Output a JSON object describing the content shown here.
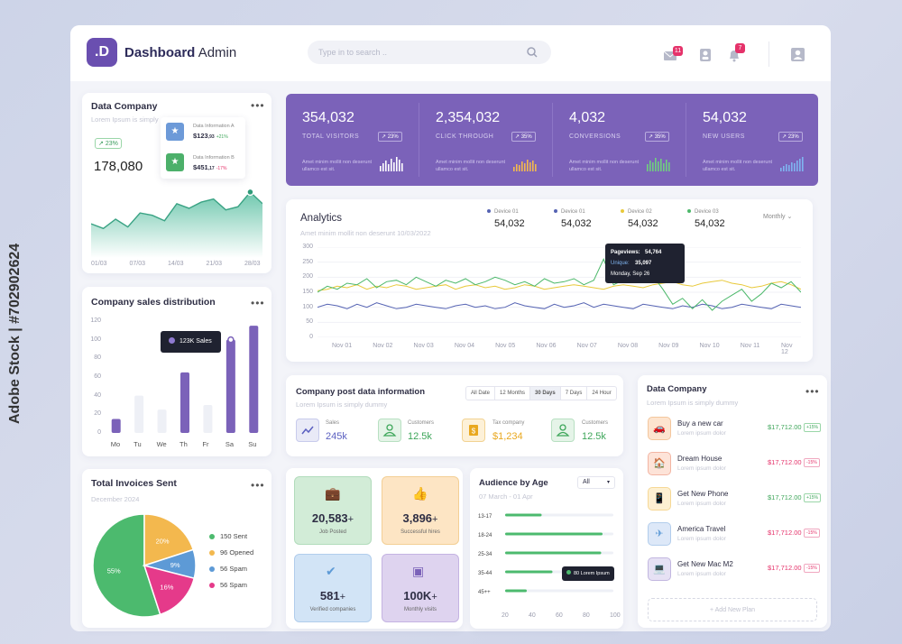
{
  "header": {
    "logo": ".D",
    "brand_bold": "Dashboard",
    "brand_rest": " Admin",
    "search_placeholder": "Type in to search ..",
    "mail_badge": "11",
    "bell_badge": "7"
  },
  "data_company_card": {
    "title": "Data Company",
    "subtitle": "Lorem Ipsum is simply",
    "change": "23%",
    "value": "178,080",
    "info": [
      {
        "label": "Data Information A",
        "value": "$123",
        "cents": ",93",
        "change": "+21%"
      },
      {
        "label": "Data Information B",
        "value": "$451",
        "cents": ",17",
        "change": "-17%"
      }
    ],
    "x_labels": [
      "01/03",
      "07/03",
      "14/03",
      "21/03",
      "28/03"
    ],
    "series": [
      44,
      38,
      50,
      40,
      58,
      55,
      48,
      70,
      64,
      72,
      76,
      62,
      66,
      85,
      70
    ]
  },
  "stats": [
    {
      "value": "354,032",
      "label": "TOTAL VISITORS",
      "change": "23%",
      "desc": "Amet minim mollit non deserunt ullamco est sit."
    },
    {
      "value": "2,354,032",
      "label": "CLICK THROUGH",
      "change": "35%",
      "desc": "Amet minim mollit non deserunt ullamco est sit."
    },
    {
      "value": "4,032",
      "label": "CONVERSIONS",
      "change": "35%",
      "desc": "Amet minim mollit non deserunt ullamco est sit."
    },
    {
      "value": "54,032",
      "label": "NEW USERS",
      "change": "23%",
      "desc": "Amet minim mollit non deserunt ullamco est sit."
    }
  ],
  "analytics": {
    "title": "Analytics",
    "subtitle": "Amet minim mollit non deserunt 10/03/2022",
    "period": "Monthly",
    "devices": [
      {
        "name": "Device 01",
        "value": "54,032",
        "color": "#5563b3"
      },
      {
        "name": "Device 01",
        "value": "54,032",
        "color": "#5563b3"
      },
      {
        "name": "Device 02",
        "value": "54,032",
        "color": "#e8c93a"
      },
      {
        "name": "Device 03",
        "value": "54,032",
        "color": "#4cb86a"
      }
    ],
    "tooltip": {
      "pageviews_label": "Pageviews:",
      "pageviews": "54,764",
      "unique_label": "Unique:",
      "unique": "35,097",
      "date": "Monday, Sep 26"
    },
    "y_ticks": [
      "300",
      "250",
      "200",
      "150",
      "100",
      "50",
      "0"
    ],
    "x_ticks": [
      "Nov 01",
      "Nov 02",
      "Nov 03",
      "Nov 04",
      "Nov 05",
      "Nov 06",
      "Nov 07",
      "Nov 08",
      "Nov 09",
      "Nov 10",
      "Nov 11",
      "Nov 12"
    ]
  },
  "chart_data": [
    {
      "type": "bar",
      "title": "Company sales distribution",
      "categories": [
        "Mo",
        "Tu",
        "We",
        "Th",
        "Fr",
        "Sa",
        "Su"
      ],
      "values": [
        15,
        40,
        25,
        65,
        30,
        100,
        115
      ],
      "highlight": [
        true,
        false,
        false,
        true,
        false,
        true,
        true
      ],
      "ylim": [
        0,
        120
      ],
      "y_ticks": [
        "120",
        "100",
        "80",
        "60",
        "40",
        "20",
        "0"
      ],
      "tooltip": "123K Sales"
    },
    {
      "type": "pie",
      "title": "Total Invoices Sent",
      "subtitle": "December 2024",
      "slices": [
        {
          "label": "55%",
          "value": 55,
          "color": "#4cba6e"
        },
        {
          "label": "20%",
          "value": 20,
          "color": "#f3b84e"
        },
        {
          "label": "9%",
          "value": 9,
          "color": "#5d9ad6"
        },
        {
          "label": "16%",
          "value": 16,
          "color": "#e53a8a"
        }
      ],
      "legend": [
        {
          "text": "150 Sent",
          "color": "#4cba6e"
        },
        {
          "text": "96 Opened",
          "color": "#f3b84e"
        },
        {
          "text": "56 Spam",
          "color": "#5d9ad6"
        },
        {
          "text": "56 Spam",
          "color": "#e53a8a"
        }
      ]
    },
    {
      "type": "bar",
      "title": "Audience by Age",
      "filter": "All",
      "subtitle": "07 March - 01 Apr",
      "categories": [
        "13-17",
        "18-24",
        "25-34",
        "35-44",
        "45++"
      ],
      "values": [
        47,
        92,
        91,
        55,
        36
      ],
      "xlim": [
        20,
        100
      ],
      "x_ticks": [
        "20",
        "40",
        "60",
        "80",
        "100"
      ],
      "tooltip": "80 Lorem Ipsum"
    }
  ],
  "post_data": {
    "title": "Company post data information",
    "subtitle": "Lorem Ipsum is simply dummy",
    "tabs": [
      "All Date",
      "12 Months",
      "30 Days",
      "7 Days",
      "24 Hour"
    ],
    "active_tab": "30 Days",
    "items": [
      {
        "label": "Sales",
        "value": "245k",
        "color": "#5a5fc0"
      },
      {
        "label": "Customers",
        "value": "12.5k",
        "color": "#3ea65a"
      },
      {
        "label": "Tax company",
        "value": "$1,234",
        "color": "#e9a81f"
      },
      {
        "label": "Customers",
        "value": "12.5k",
        "color": "#3ea65a"
      }
    ]
  },
  "tiles": [
    {
      "value": "20,583",
      "plus": "+",
      "label": "Job Posted",
      "bg": "#cfe9d4"
    },
    {
      "value": "3,896",
      "plus": "+",
      "label": "Successful hires",
      "bg": "#fbe3c2"
    },
    {
      "value": "581",
      "plus": "+",
      "label": "Verified companies",
      "bg": "#cfe2f5"
    },
    {
      "value": "100K",
      "plus": "+",
      "label": "Monthly visits",
      "bg": "#ddd2ee"
    }
  ],
  "data_company_list": {
    "title": "Data Company",
    "subtitle": "Lorem Ipsum is simply dummy",
    "add_label": "+ Add New Plan",
    "items": [
      {
        "name": "Buy a new car",
        "sub": "Lorem ipsum dolor",
        "price": "$17,712.00",
        "pct": "+15%",
        "up": true
      },
      {
        "name": "Dream House",
        "sub": "Lorem ipsum dolor",
        "price": "$17,712.00",
        "pct": "-15%",
        "up": false
      },
      {
        "name": "Get New Phone",
        "sub": "Lorem ipsum dolor",
        "price": "$17,712.00",
        "pct": "+15%",
        "up": true
      },
      {
        "name": "America Travel",
        "sub": "Lorem ipsum dolor",
        "price": "$17,712.00",
        "pct": "-15%",
        "up": false
      },
      {
        "name": "Get New Mac M2",
        "sub": "Lorem ipsum dolor",
        "price": "$17,712.00",
        "pct": "-15%",
        "up": false
      }
    ]
  },
  "watermark": "Adobe Stock | #702902624",
  "colors": {
    "accent": "#7b62b9",
    "green": "#4cba6e",
    "pink": "#e5326a"
  }
}
